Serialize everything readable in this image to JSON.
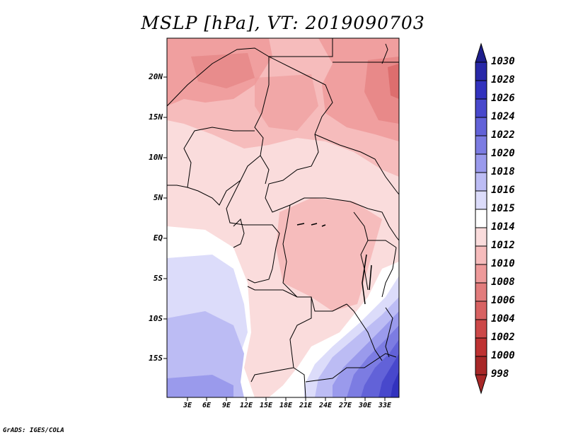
{
  "title": "MSLP [hPa], VT: 2019090703",
  "credit": "GrADS: IGES/COLA",
  "lat_ticks": [
    "20N",
    "15N",
    "10N",
    "5N",
    "EQ",
    "5S",
    "10S",
    "15S"
  ],
  "lon_ticks": [
    "3E",
    "6E",
    "9E",
    "12E",
    "15E",
    "18E",
    "21E",
    "24E",
    "27E",
    "30E",
    "33E"
  ],
  "colorbar": {
    "labels": [
      "1030",
      "1028",
      "1026",
      "1024",
      "1022",
      "1020",
      "1018",
      "1016",
      "1015",
      "1014",
      "1012",
      "1010",
      "1008",
      "1006",
      "1004",
      "1002",
      "1000",
      "998"
    ],
    "colors": [
      "#1e1e8c",
      "#2828a8",
      "#3232be",
      "#4848cc",
      "#6262d8",
      "#7c7ce2",
      "#9a9aec",
      "#bcbcf4",
      "#dcdcfa",
      "#ffffff",
      "#fadcdc",
      "#f6bcbc",
      "#ee9a9a",
      "#e27c7c",
      "#d86262",
      "#cc4848",
      "#be3232",
      "#a82828"
    ]
  },
  "map_region": "Central Africa"
}
